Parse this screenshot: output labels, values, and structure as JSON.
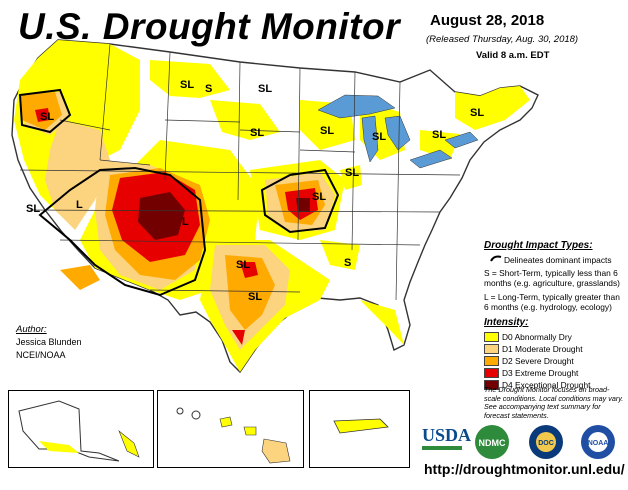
{
  "title": "U.S. Drought Monitor",
  "date": "August 28, 2018",
  "released": "(Released Thursday, Aug. 30, 2018)",
  "valid": "Valid 8 a.m. EDT",
  "impact_title": "Drought Impact Types:",
  "delineates": "Delineates dominant impacts",
  "short_term_text": "S = Short-Term, typically less than 6 months (e.g. agriculture, grasslands)",
  "long_term_text": "L = Long-Term, typically greater than 6 months (e.g. hydrology, ecology)",
  "intensity_title": "Intensity:",
  "categories": [
    {
      "label": "D0 Abnormally Dry",
      "color": "#ffff00"
    },
    {
      "label": "D1 Moderate Drought",
      "color": "#fcd37f"
    },
    {
      "label": "D2 Severe Drought",
      "color": "#ffaa00"
    },
    {
      "label": "D3 Extreme Drought",
      "color": "#e60000"
    },
    {
      "label": "D4 Exceptional Drought",
      "color": "#730000"
    }
  ],
  "note": "The Drought Monitor focuses on broad-scale conditions. Local conditions may vary. See accompanying text summary for forecast statements.",
  "author_title": "Author:",
  "author_name": "Jessica Blunden",
  "author_org": "NCEI/NOAA",
  "url": "http://droughtmonitor.unl.edu/",
  "logos": {
    "usda": "USDA",
    "ndmc": "NDMC",
    "doc": "DOC",
    "noaa": "NOAA"
  },
  "map_labels": {
    "sl": "SL",
    "s": "S",
    "l": "L"
  },
  "colors": {
    "state_border": "#333333",
    "land": "#ffffff",
    "water": "#5b9bd5"
  }
}
